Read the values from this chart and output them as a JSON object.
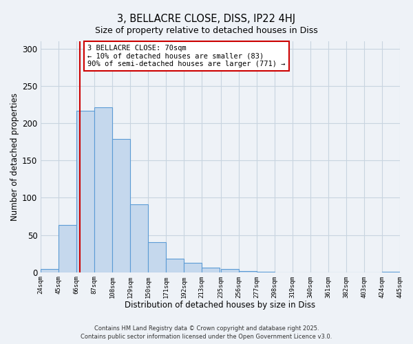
{
  "title_line1": "3, BELLACRE CLOSE, DISS, IP22 4HJ",
  "title_line2": "Size of property relative to detached houses in Diss",
  "xlabel": "Distribution of detached houses by size in Diss",
  "ylabel": "Number of detached properties",
  "bar_left_edges": [
    24,
    45,
    66,
    87,
    108,
    129,
    150,
    171,
    192,
    213,
    235,
    256,
    277,
    298,
    319,
    340,
    361,
    382,
    403,
    424
  ],
  "bar_heights": [
    4,
    63,
    217,
    221,
    179,
    91,
    40,
    18,
    13,
    6,
    4,
    2,
    1,
    0,
    0,
    0,
    0,
    0,
    0,
    1
  ],
  "bin_width": 21,
  "bar_color": "#c5d8ed",
  "bar_edge_color": "#5b9bd5",
  "vline_x": 70,
  "vline_color": "#cc0000",
  "annotation_title": "3 BELLACRE CLOSE: 70sqm",
  "annotation_line2": "← 10% of detached houses are smaller (83)",
  "annotation_line3": "90% of semi-detached houses are larger (771) →",
  "annotation_box_color": "#cc0000",
  "annotation_bg": "#ffffff",
  "ylim": [
    0,
    310
  ],
  "tick_labels": [
    "24sqm",
    "45sqm",
    "66sqm",
    "87sqm",
    "108sqm",
    "129sqm",
    "150sqm",
    "171sqm",
    "192sqm",
    "213sqm",
    "235sqm",
    "256sqm",
    "277sqm",
    "298sqm",
    "319sqm",
    "340sqm",
    "361sqm",
    "382sqm",
    "403sqm",
    "424sqm",
    "445sqm"
  ],
  "yticks": [
    0,
    50,
    100,
    150,
    200,
    250,
    300
  ],
  "grid_color": "#c8d4e0",
  "bg_color": "#eef2f7",
  "footer_line1": "Contains HM Land Registry data © Crown copyright and database right 2025.",
  "footer_line2": "Contains public sector information licensed under the Open Government Licence v3.0."
}
